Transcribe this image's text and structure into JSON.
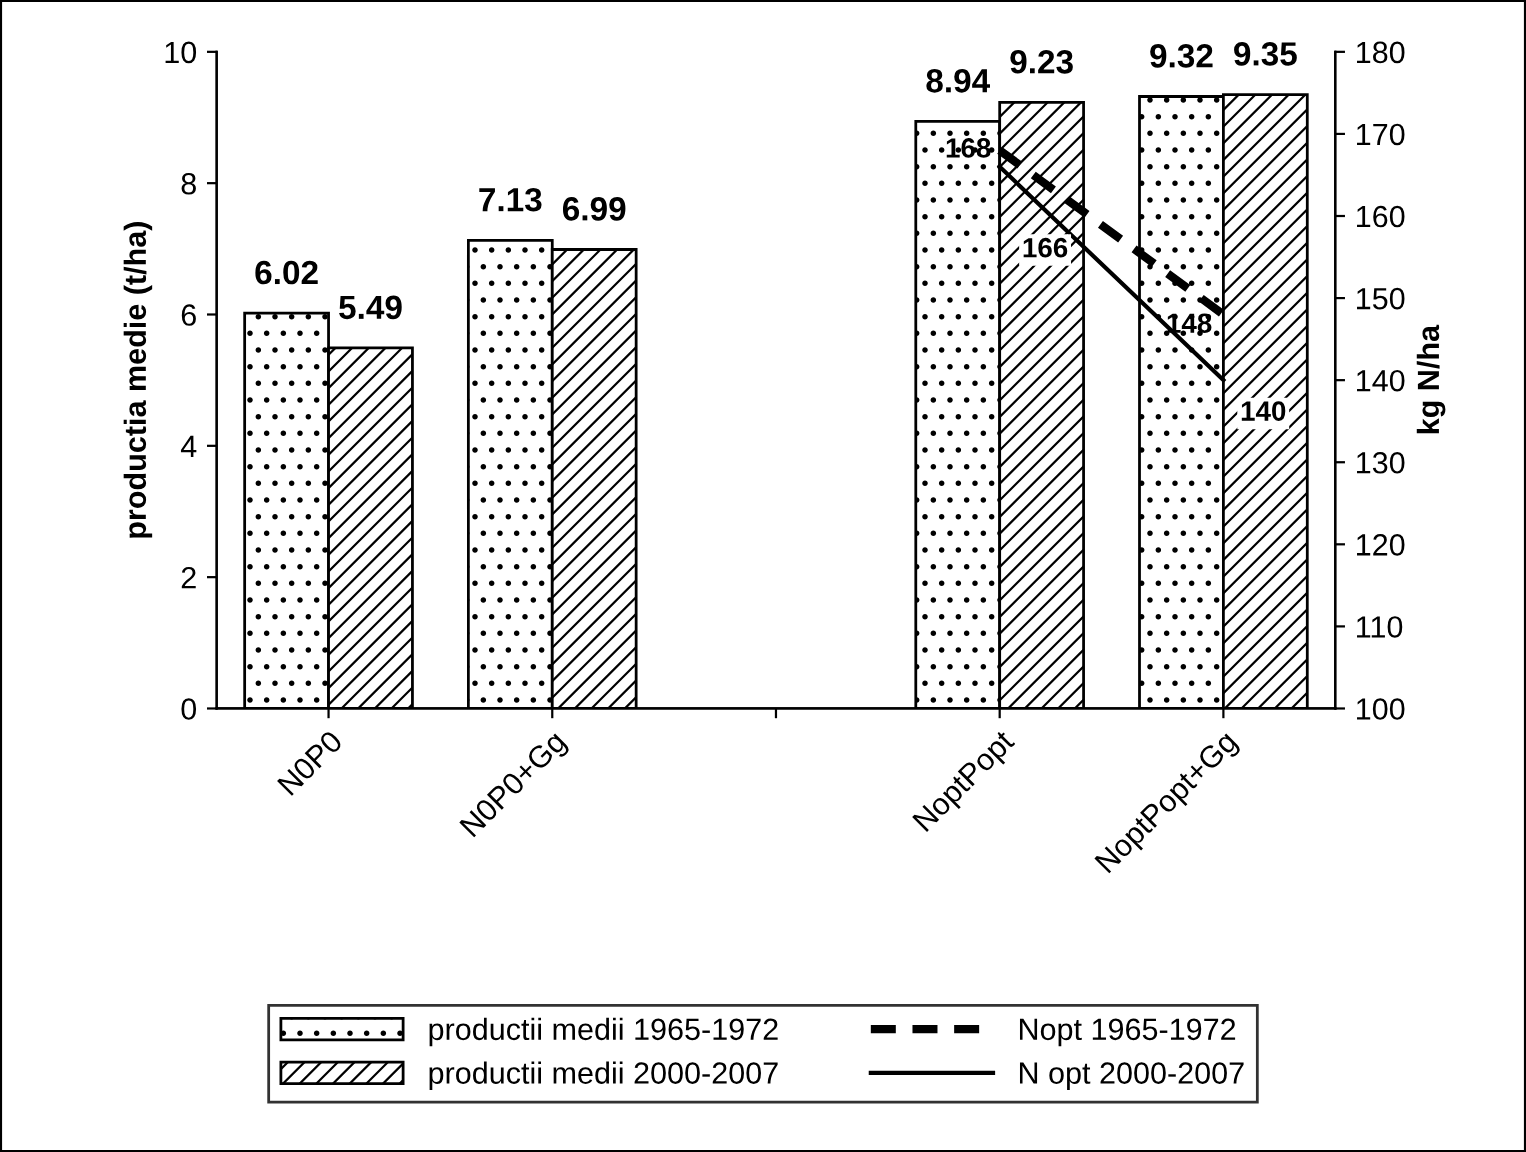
{
  "chart_data": {
    "type": "bar",
    "categories": [
      "N0P0",
      "N0P0+Gg",
      null,
      "NoptPopt",
      "NoptPopt+Gg"
    ],
    "ylabel": "productia medie (t/ha)",
    "y2label": "kg N/ha",
    "ylim": [
      0,
      10
    ],
    "yticks": [
      0,
      2,
      4,
      6,
      8,
      10
    ],
    "y2lim": [
      100,
      180
    ],
    "y2ticks": [
      100,
      110,
      120,
      130,
      140,
      150,
      160,
      170,
      180
    ],
    "series": [
      {
        "name": "productii medii 1965-1972",
        "color": "#000000",
        "values": [
          6.02,
          7.13,
          null,
          8.94,
          9.32
        ]
      },
      {
        "name": "productii medii 2000-2007",
        "color": "#000000",
        "values": [
          5.49,
          6.99,
          null,
          9.23,
          9.35
        ]
      },
      {
        "name": "Nopt 1965-1972",
        "type": "line",
        "axis": "y2",
        "color": "#000000",
        "line_style": "dashed",
        "values": [
          null,
          null,
          null,
          168,
          148
        ]
      },
      {
        "name": "N opt 2000-2007",
        "type": "line",
        "axis": "y2",
        "color": "#000000",
        "line_style": "solid",
        "values": [
          null,
          null,
          null,
          166,
          140
        ]
      }
    ],
    "data_labels": true,
    "legend": "bottom",
    "grid": false,
    "marker": "none"
  }
}
